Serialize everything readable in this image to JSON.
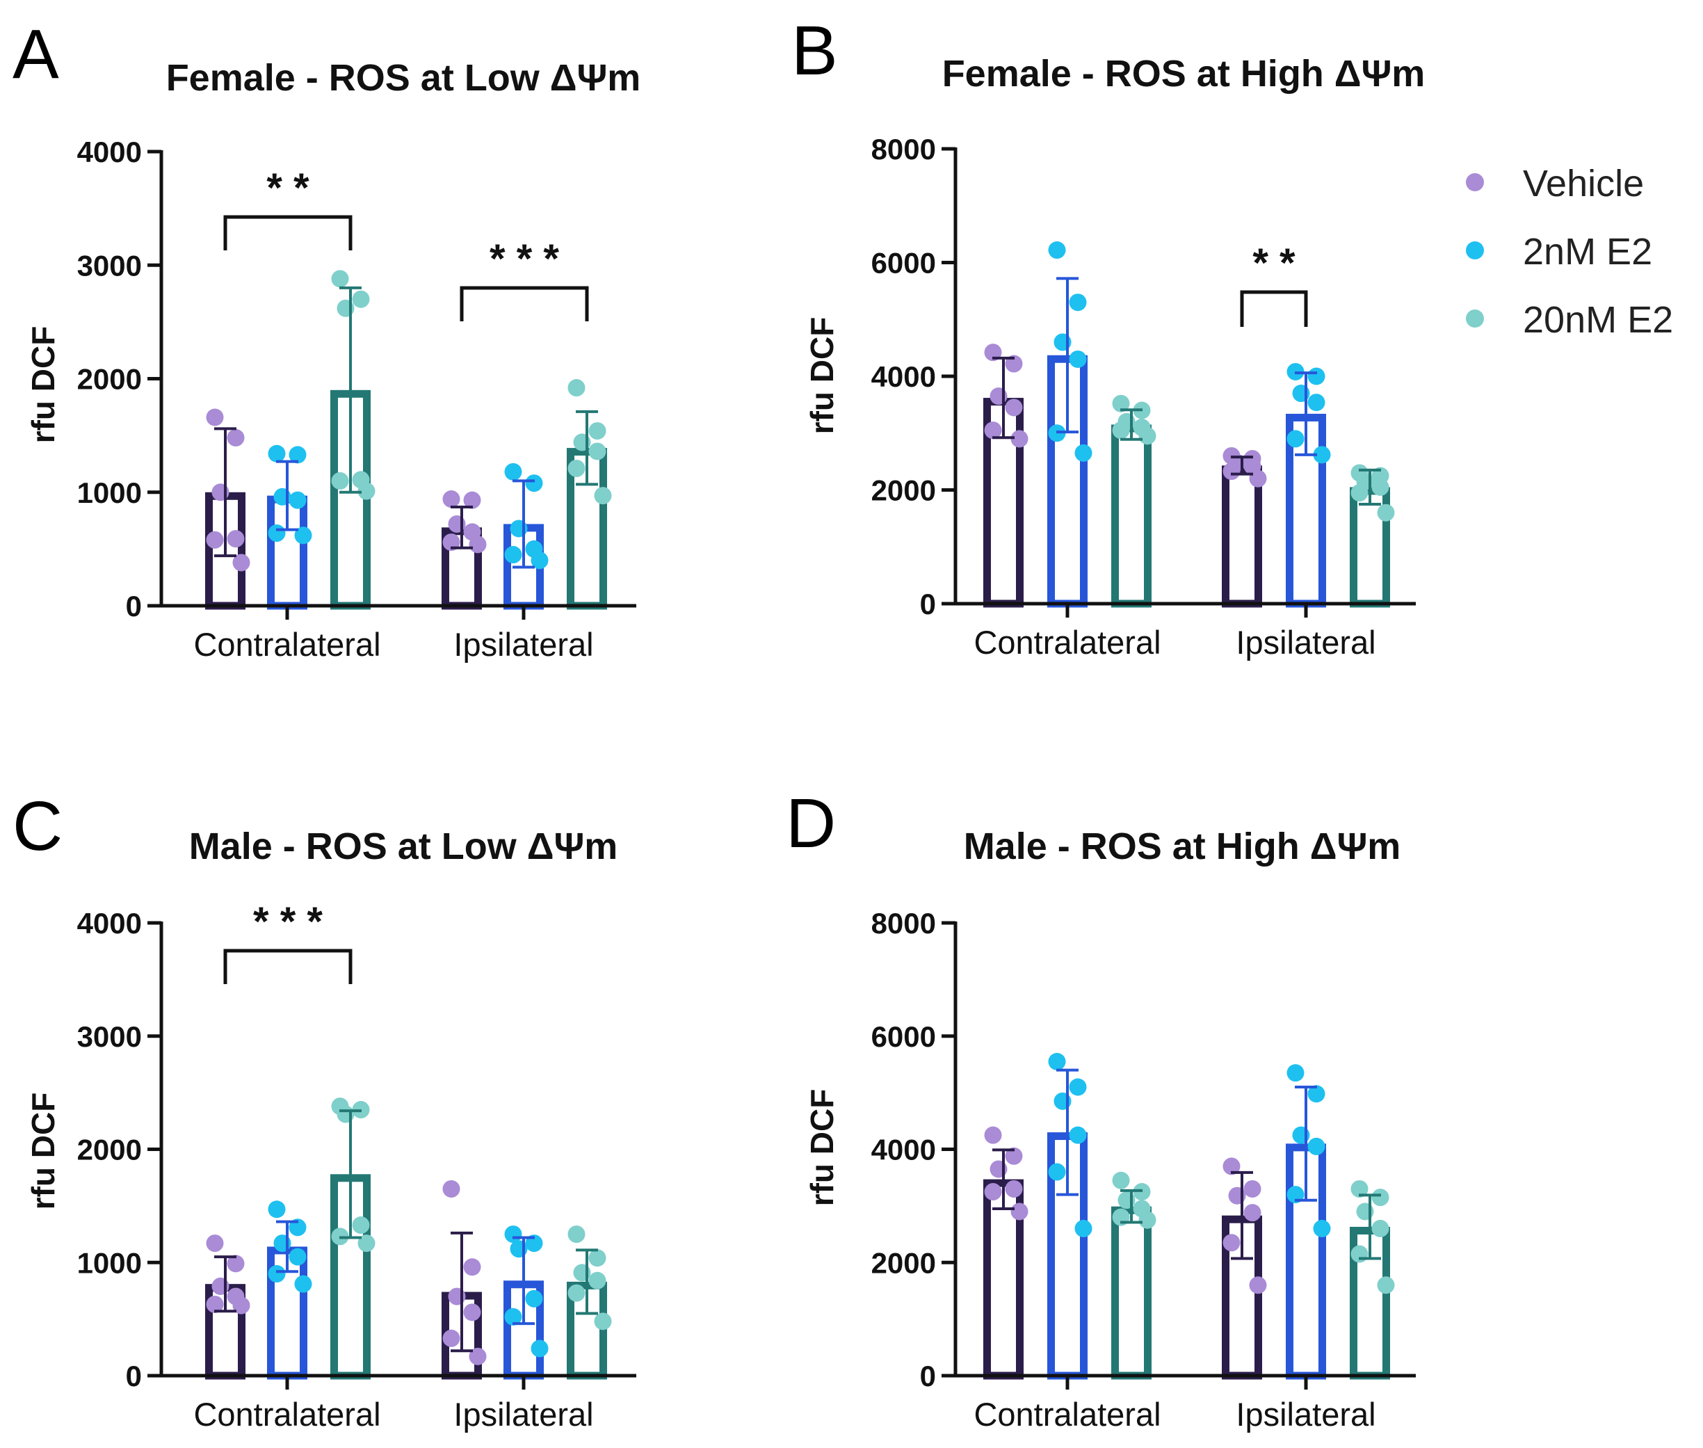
{
  "legend": [
    {
      "name": "Vehicle",
      "dot_color": "#a98bd6",
      "bar_color": "#2b1d4a"
    },
    {
      "name": "2nM E2",
      "dot_color": "#1ec0f0",
      "bar_color": "#2756d9"
    },
    {
      "name": "20nM E2",
      "dot_color": "#7fcfcb",
      "bar_color": "#237874"
    }
  ],
  "chart_data": [
    {
      "type": "bar",
      "panel": "A",
      "title": "Female - ROS at Low ΔΨm",
      "ylabel": "rfu DCF",
      "ylim": [
        0,
        4000
      ],
      "yticks": [
        0,
        1000,
        2000,
        3000,
        4000
      ],
      "categories": [
        "Contralateral",
        "Ipsilateral"
      ],
      "series": [
        {
          "name": "Vehicle",
          "values": [
            1000,
            690
          ],
          "sd": [
            560,
            180
          ],
          "points": [
            [
              1660,
              1480,
              1000,
              590,
              580,
              380
            ],
            [
              940,
              930,
              720,
              650,
              560,
              540
            ]
          ]
        },
        {
          "name": "2nM E2",
          "values": [
            970,
            720
          ],
          "sd": [
            300,
            380
          ],
          "points": [
            [
              1340,
              1330,
              960,
              930,
              640,
              620
            ],
            [
              1180,
              1080,
              680,
              500,
              450,
              400
            ]
          ]
        },
        {
          "name": "20nM E2",
          "values": [
            1900,
            1390
          ],
          "sd": [
            900,
            320
          ],
          "points": [
            [
              2880,
              2700,
              2620,
              1110,
              1100,
              1010
            ],
            [
              1920,
              1540,
              1440,
              1360,
              1210,
              970
            ]
          ]
        }
      ],
      "significance": [
        {
          "category": "Contralateral",
          "from": "Vehicle",
          "to": "20nM E2",
          "label": "**"
        },
        {
          "category": "Ipsilateral",
          "from": "Vehicle",
          "to": "20nM E2",
          "label": "***"
        }
      ]
    },
    {
      "type": "bar",
      "panel": "B",
      "title": "Female - ROS at High ΔΨm",
      "ylabel": "rfu DCF",
      "ylim": [
        0,
        8000
      ],
      "yticks": [
        0,
        2000,
        4000,
        6000,
        8000
      ],
      "categories": [
        "Contralateral",
        "Ipsilateral"
      ],
      "series": [
        {
          "name": "Vehicle",
          "values": [
            3620,
            2430
          ],
          "sd": [
            700,
            150
          ],
          "points": [
            [
              4420,
              4220,
              3650,
              3450,
              3050,
              2900
            ],
            [
              2600,
              2550,
              2480,
              2420,
              2330,
              2200
            ]
          ]
        },
        {
          "name": "2nM E2",
          "values": [
            4370,
            3340
          ],
          "sd": [
            1350,
            720
          ],
          "points": [
            [
              6220,
              5300,
              4600,
              4300,
              3000,
              2650
            ],
            [
              4080,
              4000,
              3700,
              3540,
              2900,
              2620
            ]
          ]
        },
        {
          "name": "20nM E2",
          "values": [
            3150,
            2050
          ],
          "sd": [
            260,
            300
          ],
          "points": [
            [
              3520,
              3400,
              3200,
              3100,
              3050,
              2950
            ],
            [
              2300,
              2250,
              2150,
              2050,
              1950,
              1600
            ]
          ]
        }
      ],
      "significance": [
        {
          "category": "Ipsilateral",
          "from": "Vehicle",
          "to": "2nM E2",
          "label": "**"
        }
      ]
    },
    {
      "type": "bar",
      "panel": "C",
      "title": "Male - ROS at Low ΔΨm",
      "ylabel": "rfu DCF",
      "ylim": [
        0,
        4000
      ],
      "yticks": [
        0,
        1000,
        2000,
        3000,
        4000
      ],
      "categories": [
        "Contralateral",
        "Ipsilateral"
      ],
      "series": [
        {
          "name": "Vehicle",
          "values": [
            810,
            740
          ],
          "sd": [
            240,
            520
          ],
          "points": [
            [
              1170,
              990,
              790,
              700,
              630,
              620
            ],
            [
              1650,
              960,
              700,
              560,
              330,
              170
            ]
          ]
        },
        {
          "name": "2nM E2",
          "values": [
            1140,
            840
          ],
          "sd": [
            220,
            380
          ],
          "points": [
            [
              1470,
              1310,
              1170,
              1050,
              900,
              810
            ],
            [
              1250,
              1170,
              1120,
              680,
              520,
              240
            ]
          ]
        },
        {
          "name": "20nM E2",
          "values": [
            1780,
            830
          ],
          "sd": [
            560,
            280
          ],
          "points": [
            [
              2380,
              2350,
              2310,
              1330,
              1230,
              1170
            ],
            [
              1250,
              1040,
              910,
              840,
              730,
              480
            ]
          ]
        }
      ],
      "significance": [
        {
          "category": "Contralateral",
          "from": "Vehicle",
          "to": "20nM E2",
          "label": "***"
        }
      ]
    },
    {
      "type": "bar",
      "panel": "D",
      "title": "Male - ROS at High ΔΨm",
      "ylabel": "rfu DCF",
      "ylim": [
        0,
        8000
      ],
      "yticks": [
        0,
        2000,
        4000,
        6000,
        8000
      ],
      "categories": [
        "Contralateral",
        "Ipsilateral"
      ],
      "series": [
        {
          "name": "Vehicle",
          "values": [
            3470,
            2830
          ],
          "sd": [
            520,
            760
          ],
          "points": [
            [
              4250,
              3880,
              3650,
              3300,
              3250,
              2900
            ],
            [
              3700,
              3300,
              3180,
              2880,
              2350,
              1600
            ]
          ]
        },
        {
          "name": "2nM E2",
          "values": [
            4300,
            4100
          ],
          "sd": [
            1100,
            1000
          ],
          "points": [
            [
              5550,
              5100,
              4850,
              4250,
              3600,
              2600
            ],
            [
              5350,
              4980,
              4250,
              4050,
              3200,
              2600
            ]
          ]
        },
        {
          "name": "20nM E2",
          "values": [
            2990,
            2630
          ],
          "sd": [
            280,
            560
          ],
          "points": [
            [
              3450,
              3250,
              3100,
              2950,
              2800,
              2750
            ],
            [
              3300,
              3150,
              2900,
              2600,
              2150,
              1600
            ]
          ]
        }
      ],
      "significance": []
    }
  ]
}
